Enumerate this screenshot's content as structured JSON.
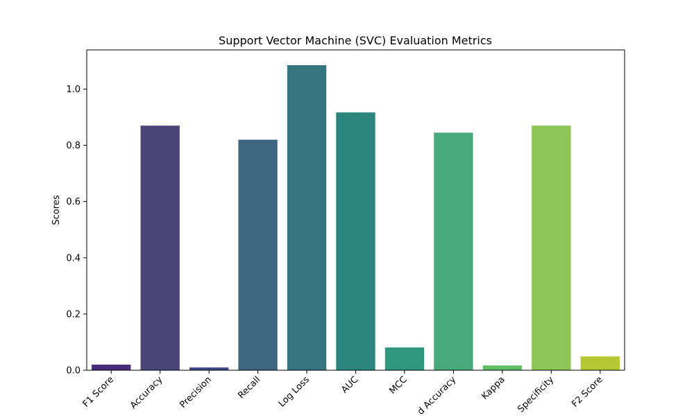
{
  "chart_data": {
    "type": "bar",
    "title": "Support Vector Machine (SVC) Evaluation Metrics",
    "xlabel": "",
    "ylabel": "Scores",
    "categories": [
      "F1 Score",
      "Accuracy",
      "Precision",
      "Recall",
      "Log Loss",
      "AUC",
      "MCC",
      "d Accuracy",
      "Kappa",
      "Specificity",
      "F2 Score"
    ],
    "values": [
      0.02,
      0.87,
      0.01,
      0.82,
      1.085,
      0.917,
      0.081,
      0.845,
      0.017,
      0.87,
      0.049
    ],
    "colors": [
      "#472c7a",
      "#4a4479",
      "#3e4a89",
      "#3e6680",
      "#357582",
      "#2c847e",
      "#2e977d",
      "#48a97b",
      "#5fbf66",
      "#8dc556",
      "#b5c733"
    ],
    "yticks": [
      "0.0",
      "0.2",
      "0.4",
      "0.6",
      "0.8",
      "1.0"
    ],
    "ylim": [
      0,
      1.1393
    ],
    "grid": false,
    "legend": "none"
  }
}
